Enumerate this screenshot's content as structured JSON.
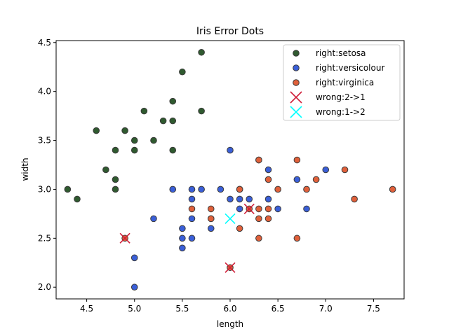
{
  "chart_data": {
    "type": "scatter",
    "title": "Iris Error Dots",
    "xlabel": "length",
    "ylabel": "width",
    "xlim": [
      4.18,
      7.82
    ],
    "ylim": [
      1.88,
      4.52
    ],
    "xticks": [
      "4.5",
      "5.0",
      "5.5",
      "6.0",
      "6.5",
      "7.0",
      "7.5"
    ],
    "yticks": [
      "2.0",
      "2.5",
      "3.0",
      "3.5",
      "4.0",
      "4.5"
    ],
    "grid": false,
    "legend_position": "top-right",
    "series": [
      {
        "name": "right:setosa",
        "marker": "circle",
        "color": "#2f5a2f",
        "points": [
          [
            5.7,
            4.4
          ],
          [
            5.5,
            4.2
          ],
          [
            5.4,
            3.9
          ],
          [
            5.1,
            3.8
          ],
          [
            5.7,
            3.8
          ],
          [
            5.3,
            3.7
          ],
          [
            5.4,
            3.7
          ],
          [
            4.6,
            3.6
          ],
          [
            4.9,
            3.6
          ],
          [
            5.0,
            3.5
          ],
          [
            5.2,
            3.5
          ],
          [
            4.8,
            3.4
          ],
          [
            5.0,
            3.4
          ],
          [
            5.4,
            3.4
          ],
          [
            4.7,
            3.2
          ],
          [
            4.8,
            3.1
          ],
          [
            4.3,
            3.0
          ],
          [
            4.8,
            3.0
          ],
          [
            4.4,
            2.9
          ]
        ]
      },
      {
        "name": "right:versicolour",
        "marker": "circle",
        "color": "#3a5fd8",
        "points": [
          [
            6.0,
            3.4
          ],
          [
            6.3,
            3.3
          ],
          [
            6.4,
            3.2
          ],
          [
            6.7,
            3.1
          ],
          [
            7.0,
            3.2
          ],
          [
            5.4,
            3.0
          ],
          [
            5.6,
            3.0
          ],
          [
            5.7,
            3.0
          ],
          [
            5.9,
            3.0
          ],
          [
            6.1,
            3.0
          ],
          [
            5.6,
            2.9
          ],
          [
            6.0,
            2.9
          ],
          [
            6.1,
            2.9
          ],
          [
            6.2,
            2.9
          ],
          [
            6.4,
            2.9
          ],
          [
            6.1,
            2.8
          ],
          [
            6.5,
            2.8
          ],
          [
            6.8,
            2.8
          ],
          [
            5.2,
            2.7
          ],
          [
            5.6,
            2.7
          ],
          [
            5.8,
            2.7
          ],
          [
            5.8,
            2.6
          ],
          [
            5.5,
            2.6
          ],
          [
            5.5,
            2.5
          ],
          [
            5.6,
            2.5
          ],
          [
            5.5,
            2.4
          ],
          [
            5.0,
            2.3
          ],
          [
            5.0,
            2.0
          ]
        ]
      },
      {
        "name": "right:virginica",
        "marker": "circle",
        "color": "#e0603a",
        "points": [
          [
            6.3,
            3.3
          ],
          [
            6.7,
            3.3
          ],
          [
            7.2,
            3.2
          ],
          [
            6.4,
            3.1
          ],
          [
            6.9,
            3.1
          ],
          [
            6.1,
            3.0
          ],
          [
            6.5,
            3.0
          ],
          [
            6.8,
            3.0
          ],
          [
            7.7,
            3.0
          ],
          [
            7.3,
            2.9
          ],
          [
            5.6,
            2.8
          ],
          [
            5.8,
            2.8
          ],
          [
            6.2,
            2.8
          ],
          [
            6.3,
            2.8
          ],
          [
            6.4,
            2.8
          ],
          [
            5.8,
            2.7
          ],
          [
            6.3,
            2.7
          ],
          [
            6.4,
            2.7
          ],
          [
            6.1,
            2.6
          ],
          [
            6.3,
            2.5
          ],
          [
            6.7,
            2.5
          ],
          [
            4.9,
            2.5
          ],
          [
            6.0,
            2.2
          ]
        ]
      },
      {
        "name": "wrong:2->1",
        "marker": "x",
        "color": "#d0203a",
        "points": [
          [
            4.9,
            2.5
          ],
          [
            6.2,
            2.8
          ],
          [
            6.0,
            2.2
          ]
        ]
      },
      {
        "name": "wrong:1->2",
        "marker": "x",
        "color": "#00ffff",
        "points": [
          [
            6.0,
            2.7
          ]
        ]
      }
    ]
  }
}
